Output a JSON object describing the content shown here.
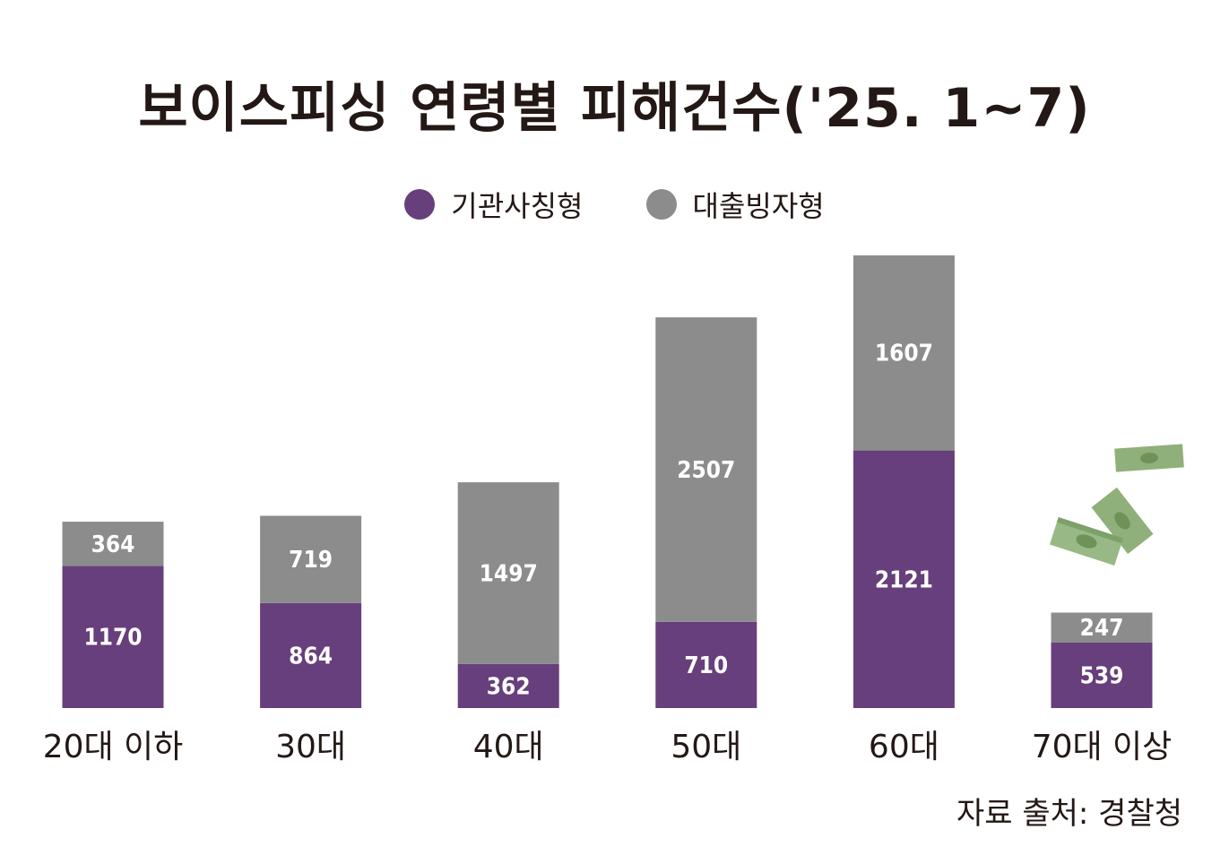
{
  "title": "보이스피싱 연령별 피해건수('25. 1~7)",
  "source": "자료 출처: 경찰청",
  "colors": {
    "institution": "#673f7c",
    "loan": "#8c8c8c",
    "text": "#231815",
    "bill": "#8fb07a"
  },
  "decoration": "money-bills-icon",
  "chart_data": {
    "type": "bar",
    "stacked": true,
    "title": "보이스피싱 연령별 피해건수('25. 1~7)",
    "categories": [
      "20대 이하",
      "30대",
      "40대",
      "50대",
      "60대",
      "70대 이상"
    ],
    "series": [
      {
        "name": "기관사칭형",
        "color": "#673f7c",
        "values": [
          1170,
          864,
          362,
          710,
          2121,
          539
        ]
      },
      {
        "name": "대출빙자형",
        "color": "#8c8c8c",
        "values": [
          364,
          719,
          1497,
          2507,
          1607,
          247
        ]
      }
    ],
    "legend": "top-center",
    "grid": false,
    "ylim": [
      0,
      3728
    ]
  }
}
